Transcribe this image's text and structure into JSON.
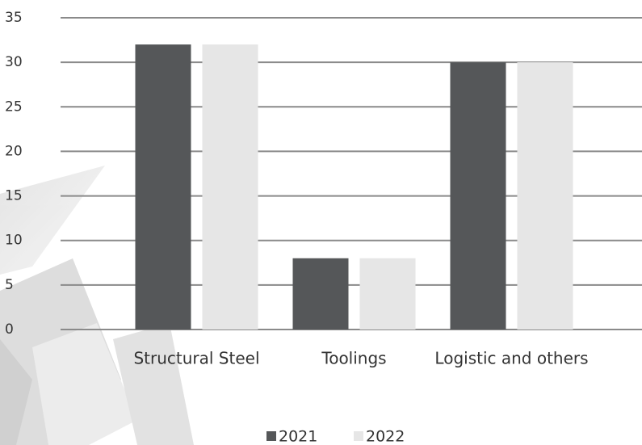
{
  "chart_data": {
    "type": "bar",
    "categories": [
      "Structural Steel",
      "Toolings",
      "Logistic and others"
    ],
    "series": [
      {
        "name": "2021",
        "color": "#555759",
        "values": [
          32,
          8,
          30
        ]
      },
      {
        "name": "2022",
        "color": "#e6e6e6",
        "values": [
          32,
          8,
          30
        ]
      }
    ],
    "ylim": [
      0,
      35
    ],
    "yticks": [
      0,
      5,
      10,
      15,
      20,
      25,
      30,
      35
    ],
    "grid": true,
    "legend": "bottom"
  }
}
